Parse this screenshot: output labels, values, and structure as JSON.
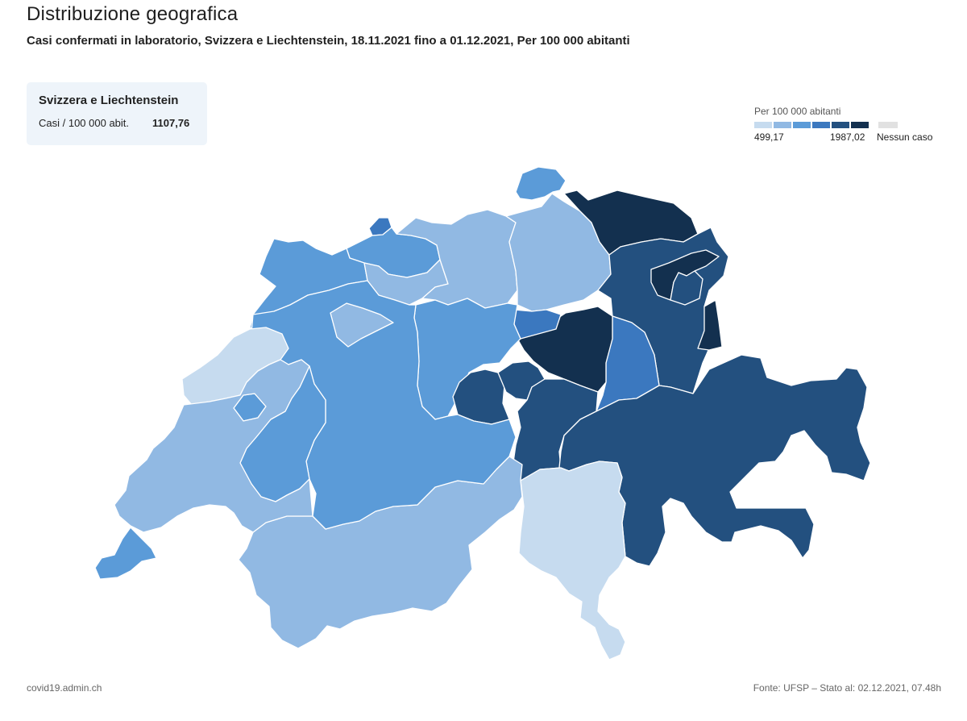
{
  "header": {
    "title": "Distribuzione geografica",
    "subtitle": "Casi confermati in laboratorio, Svizzera e Liechtenstein, 18.11.2021 fino a 01.12.2021, Per 100 000 abitanti"
  },
  "info_box": {
    "title": "Svizzera e Liechtenstein",
    "label": "Casi / 100 000 abit.",
    "value": "1107,76"
  },
  "legend": {
    "title": "Per 100 000 abitanti",
    "min_label": "499,17",
    "max_label": "1987,02",
    "no_case_label": "Nessun caso",
    "colors": [
      "#c6dbef",
      "#91b9e3",
      "#5b9bd8",
      "#3b78bf",
      "#23507f",
      "#13304f"
    ],
    "no_case_color": "#e1e1e1"
  },
  "footer": {
    "left": "covid19.admin.ch",
    "right": "Fonte: UFSP – Stato al: 02.12.2021, 07.48h"
  },
  "map": {
    "regions": [
      {
        "id": "SH",
        "class": 2
      },
      {
        "id": "BS",
        "class": 3
      },
      {
        "id": "BL",
        "class": 2
      },
      {
        "id": "JU",
        "class": 2
      },
      {
        "id": "SO",
        "class": 1
      },
      {
        "id": "AG",
        "class": 1
      },
      {
        "id": "ZH",
        "class": 1
      },
      {
        "id": "TG",
        "class": 5
      },
      {
        "id": "SG",
        "class": 4
      },
      {
        "id": "AR",
        "class": 5
      },
      {
        "id": "AI",
        "class": 4
      },
      {
        "id": "FL",
        "class": 5
      },
      {
        "id": "GL",
        "class": 3
      },
      {
        "id": "SZ",
        "class": 5
      },
      {
        "id": "ZG",
        "class": 3
      },
      {
        "id": "LU",
        "class": 2
      },
      {
        "id": "OW",
        "class": 4
      },
      {
        "id": "NW",
        "class": 4
      },
      {
        "id": "UR",
        "class": 4
      },
      {
        "id": "GR",
        "class": 4
      },
      {
        "id": "TI",
        "class": 0
      },
      {
        "id": "VS",
        "class": 1
      },
      {
        "id": "BE",
        "class": 2
      },
      {
        "id": "FR",
        "class": 2
      },
      {
        "id": "NE",
        "class": 0
      },
      {
        "id": "VD",
        "class": 1
      },
      {
        "id": "GE",
        "class": 2
      }
    ]
  }
}
